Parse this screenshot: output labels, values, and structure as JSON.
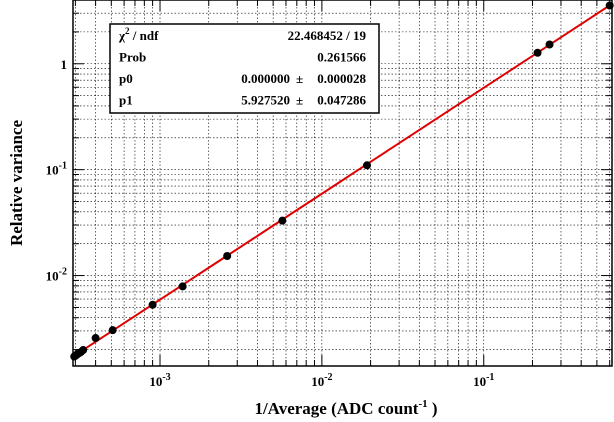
{
  "chart_data": {
    "type": "scatter",
    "xlabel": "1/Average (ADC count",
    "xlabel_sup": "-1",
    "xlabel_tail": " )",
    "ylabel": "Relative variance",
    "x_scale": "log",
    "y_scale": "log",
    "xlim": [
      0.00029,
      0.62
    ],
    "ylim": [
      0.0014,
      4.0
    ],
    "grid": true,
    "x_ticks": [
      {
        "base": "10",
        "exp": "-3",
        "value": 0.001
      },
      {
        "base": "10",
        "exp": "-2",
        "value": 0.01
      },
      {
        "base": "10",
        "exp": "-1",
        "value": 0.1
      }
    ],
    "y_ticks": [
      {
        "base": "10",
        "exp": "-2",
        "value": 0.01
      },
      {
        "base": "10",
        "exp": "-1",
        "value": 0.1
      },
      {
        "base": "1",
        "exp": "",
        "value": 1
      }
    ],
    "points": [
      {
        "x": 0.000295,
        "y": 0.00172
      },
      {
        "x": 0.0003,
        "y": 0.00175
      },
      {
        "x": 0.000305,
        "y": 0.00178
      },
      {
        "x": 0.00031,
        "y": 0.00182
      },
      {
        "x": 0.000318,
        "y": 0.00186
      },
      {
        "x": 0.000325,
        "y": 0.0019
      },
      {
        "x": 0.000335,
        "y": 0.00198
      },
      {
        "x": 0.0004,
        "y": 0.00257
      },
      {
        "x": 0.00051,
        "y": 0.00305
      },
      {
        "x": 0.0009,
        "y": 0.0053
      },
      {
        "x": 0.00138,
        "y": 0.0079
      },
      {
        "x": 0.0026,
        "y": 0.0153
      },
      {
        "x": 0.0057,
        "y": 0.033
      },
      {
        "x": 0.019,
        "y": 0.11
      },
      {
        "x": 0.215,
        "y": 1.27
      },
      {
        "x": 0.255,
        "y": 1.52
      },
      {
        "x": 0.6,
        "y": 3.55
      }
    ],
    "fit": {
      "function": "p0 + p1*x",
      "color": "#e00000",
      "p0": 0.0,
      "p1": 5.92752,
      "x_range": [
        0.00029,
        0.62
      ]
    },
    "marker_color": "#000000",
    "stats_box": {
      "rows": [
        {
          "label": "χ",
          "label_sup": "2",
          "label_tail": " / ndf",
          "value": "22.468452 / 19",
          "error": ""
        },
        {
          "label": "Prob",
          "label_sup": "",
          "label_tail": "",
          "value": "0.261566",
          "error": ""
        },
        {
          "label": "p0",
          "label_sup": "",
          "label_tail": "",
          "value": "0.000000",
          "error": "0.000028"
        },
        {
          "label": "p1",
          "label_sup": "",
          "label_tail": "",
          "value": "5.927520",
          "error": "0.047286"
        }
      ],
      "pm_symbol": "±"
    }
  }
}
